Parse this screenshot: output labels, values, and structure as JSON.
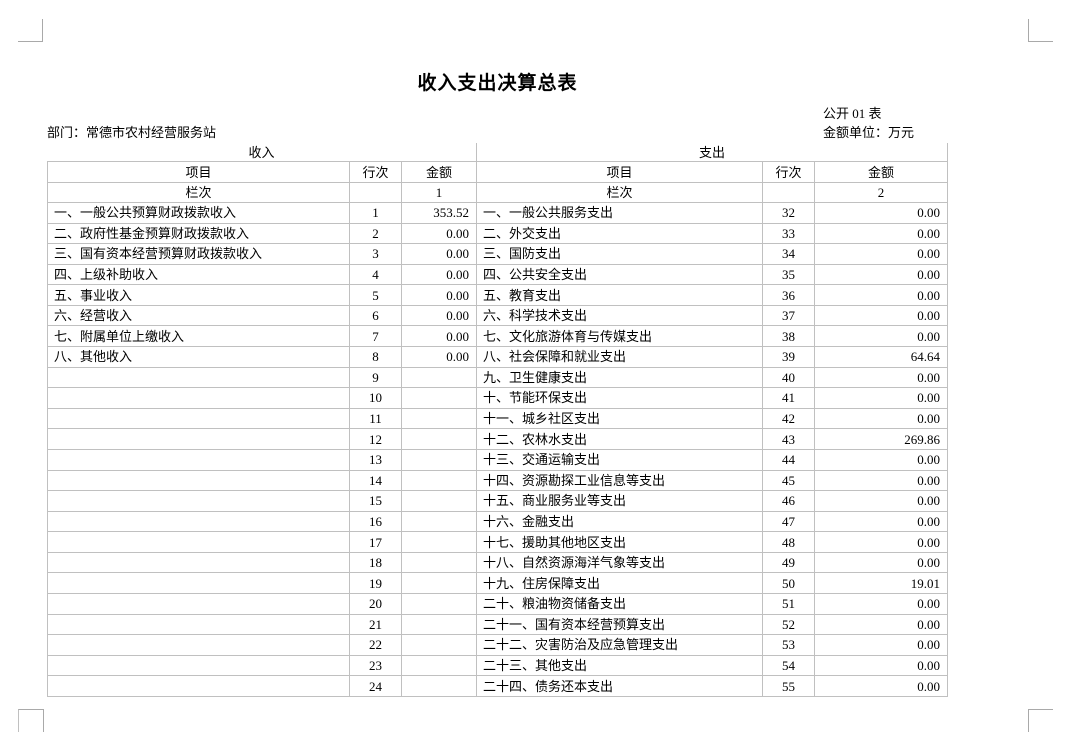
{
  "page": {
    "title": "收入支出决算总表",
    "table_code": "公开 01 表",
    "department_label": "部门：常德市农村经营服务站",
    "unit_label": "金额单位：万元"
  },
  "table": {
    "income_section_title": "收入",
    "expense_section_title": "支出",
    "column_headers": {
      "item": "项目",
      "line_no": "行次",
      "amount": "金额"
    },
    "column_index_label": "栏次",
    "income_column_index": "1",
    "expense_column_index": "2",
    "income_rows": [
      {
        "item": "一、一般公共预算财政拨款收入",
        "line": "1",
        "amount": "353.52"
      },
      {
        "item": "二、政府性基金预算财政拨款收入",
        "line": "2",
        "amount": "0.00"
      },
      {
        "item": "三、国有资本经营预算财政拨款收入",
        "line": "3",
        "amount": "0.00"
      },
      {
        "item": "四、上级补助收入",
        "line": "4",
        "amount": "0.00"
      },
      {
        "item": "五、事业收入",
        "line": "5",
        "amount": "0.00"
      },
      {
        "item": "六、经营收入",
        "line": "6",
        "amount": "0.00"
      },
      {
        "item": "七、附属单位上缴收入",
        "line": "7",
        "amount": "0.00"
      },
      {
        "item": "八、其他收入",
        "line": "8",
        "amount": "0.00"
      },
      {
        "item": "",
        "line": "9",
        "amount": ""
      },
      {
        "item": "",
        "line": "10",
        "amount": ""
      },
      {
        "item": "",
        "line": "11",
        "amount": ""
      },
      {
        "item": "",
        "line": "12",
        "amount": ""
      },
      {
        "item": "",
        "line": "13",
        "amount": ""
      },
      {
        "item": "",
        "line": "14",
        "amount": ""
      },
      {
        "item": "",
        "line": "15",
        "amount": ""
      },
      {
        "item": "",
        "line": "16",
        "amount": ""
      },
      {
        "item": "",
        "line": "17",
        "amount": ""
      },
      {
        "item": "",
        "line": "18",
        "amount": ""
      },
      {
        "item": "",
        "line": "19",
        "amount": ""
      },
      {
        "item": "",
        "line": "20",
        "amount": ""
      },
      {
        "item": "",
        "line": "21",
        "amount": ""
      },
      {
        "item": "",
        "line": "22",
        "amount": ""
      },
      {
        "item": "",
        "line": "23",
        "amount": ""
      },
      {
        "item": "",
        "line": "24",
        "amount": ""
      }
    ],
    "expense_rows": [
      {
        "item": "一、一般公共服务支出",
        "line": "32",
        "amount": "0.00"
      },
      {
        "item": "二、外交支出",
        "line": "33",
        "amount": "0.00"
      },
      {
        "item": "三、国防支出",
        "line": "34",
        "amount": "0.00"
      },
      {
        "item": "四、公共安全支出",
        "line": "35",
        "amount": "0.00"
      },
      {
        "item": "五、教育支出",
        "line": "36",
        "amount": "0.00"
      },
      {
        "item": "六、科学技术支出",
        "line": "37",
        "amount": "0.00"
      },
      {
        "item": "七、文化旅游体育与传媒支出",
        "line": "38",
        "amount": "0.00"
      },
      {
        "item": "八、社会保障和就业支出",
        "line": "39",
        "amount": "64.64"
      },
      {
        "item": "九、卫生健康支出",
        "line": "40",
        "amount": "0.00"
      },
      {
        "item": "十、节能环保支出",
        "line": "41",
        "amount": "0.00"
      },
      {
        "item": "十一、城乡社区支出",
        "line": "42",
        "amount": "0.00"
      },
      {
        "item": "十二、农林水支出",
        "line": "43",
        "amount": "269.86"
      },
      {
        "item": "十三、交通运输支出",
        "line": "44",
        "amount": "0.00"
      },
      {
        "item": "十四、资源勘探工业信息等支出",
        "line": "45",
        "amount": "0.00"
      },
      {
        "item": "十五、商业服务业等支出",
        "line": "46",
        "amount": "0.00"
      },
      {
        "item": "十六、金融支出",
        "line": "47",
        "amount": "0.00"
      },
      {
        "item": "十七、援助其他地区支出",
        "line": "48",
        "amount": "0.00"
      },
      {
        "item": "十八、自然资源海洋气象等支出",
        "line": "49",
        "amount": "0.00"
      },
      {
        "item": "十九、住房保障支出",
        "line": "50",
        "amount": "19.01"
      },
      {
        "item": "二十、粮油物资储备支出",
        "line": "51",
        "amount": "0.00"
      },
      {
        "item": "二十一、国有资本经营预算支出",
        "line": "52",
        "amount": "0.00"
      },
      {
        "item": "二十二、灾害防治及应急管理支出",
        "line": "53",
        "amount": "0.00"
      },
      {
        "item": "二十三、其他支出",
        "line": "54",
        "amount": "0.00"
      },
      {
        "item": "二十四、债务还本支出",
        "line": "55",
        "amount": "0.00"
      }
    ]
  },
  "colors": {
    "background": "#ffffff",
    "text": "#000000",
    "border": "#c0c0c0",
    "corner_mark": "#a9a9a9"
  }
}
